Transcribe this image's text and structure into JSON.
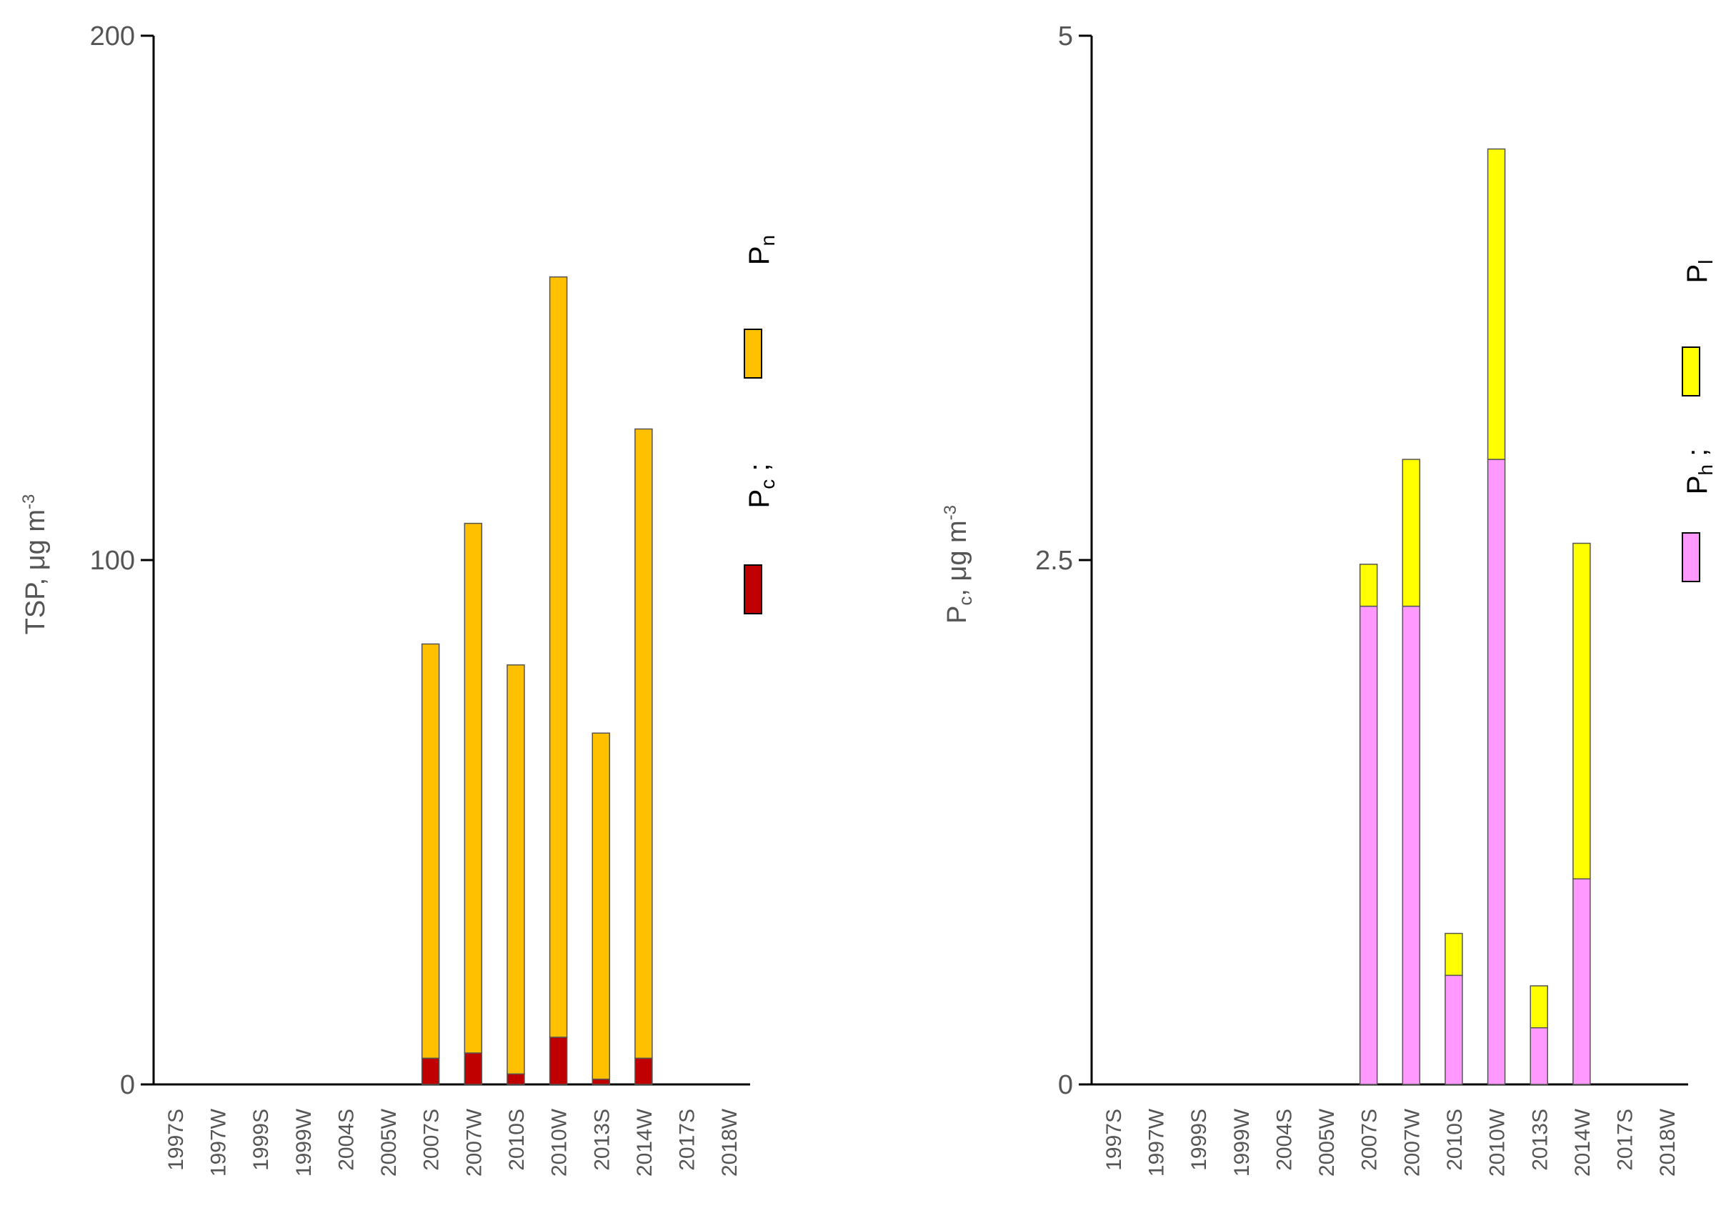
{
  "chart_data": [
    {
      "type": "bar",
      "stacked": true,
      "ylabel": "TSP, μg m",
      "ylabel_sup": "-3",
      "ylim": [
        0,
        200
      ],
      "yticks": [
        "0",
        "100",
        "200"
      ],
      "categories": [
        "1997S",
        "1997W",
        "1999S",
        "1999W",
        "2004S",
        "2005W",
        "2007S",
        "2007W",
        "2010S",
        "2010W",
        "2013S",
        "2014W",
        "2017S",
        "2018W"
      ],
      "series": [
        {
          "name": "Pc",
          "label_main": "P",
          "label_sub": "c",
          "label_suffix": " ;",
          "color": "#c00000",
          "values": [
            0,
            0,
            0,
            0,
            0,
            0,
            5,
            6,
            2,
            9,
            1,
            5,
            0,
            0
          ]
        },
        {
          "name": "Pn",
          "label_main": "P",
          "label_sub": "n",
          "label_suffix": "",
          "color": "#ffc000",
          "values": [
            0,
            0,
            0,
            0,
            0,
            0,
            79,
            101,
            78,
            145,
            66,
            120,
            0,
            0
          ]
        }
      ],
      "legend_position": "right"
    },
    {
      "type": "bar",
      "stacked": true,
      "ylabel": "P",
      "ylabel_sub": "c",
      "ylabel_rest": ", μg m",
      "ylabel_sup": "-3",
      "ylim": [
        0,
        5
      ],
      "yticks": [
        "0",
        "2.5",
        "5"
      ],
      "categories": [
        "1997S",
        "1997W",
        "1999S",
        "1999W",
        "2004S",
        "2005W",
        "2007S",
        "2007W",
        "2010S",
        "2010W",
        "2013S",
        "2014W",
        "2017S",
        "2018W"
      ],
      "series": [
        {
          "name": "Ph",
          "label_main": "P",
          "label_sub": "h",
          "label_suffix": " ;",
          "color": "#ff99ff",
          "values": [
            0,
            0,
            0,
            0,
            0,
            0,
            2.28,
            2.28,
            0.52,
            2.98,
            0.27,
            0.98,
            0,
            0
          ]
        },
        {
          "name": "Pl",
          "label_main": "P",
          "label_sub": "l",
          "label_suffix": "",
          "color": "#ffff00",
          "values": [
            0,
            0,
            0,
            0,
            0,
            0,
            0.2,
            0.7,
            0.2,
            1.48,
            0.2,
            1.6,
            0,
            0
          ]
        }
      ],
      "legend_position": "right"
    }
  ]
}
